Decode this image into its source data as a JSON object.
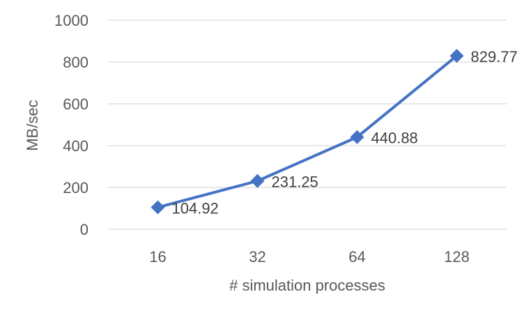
{
  "chart_data": {
    "type": "line",
    "title": "",
    "xlabel": "# simulation processes",
    "ylabel": "MB/sec",
    "categories": [
      "16",
      "32",
      "64",
      "128"
    ],
    "series": [
      {
        "values": [
          104.92,
          231.25,
          440.88,
          829.77
        ],
        "labels": [
          "104.92",
          "231.25",
          "440.88",
          "829.77"
        ]
      }
    ],
    "ylim": [
      0,
      1000
    ],
    "yticks": [
      0,
      200,
      400,
      600,
      800,
      1000
    ],
    "ytick_labels": [
      "0",
      "200",
      "400",
      "600",
      "800",
      "1000"
    ],
    "grid": true,
    "legend": "none",
    "line_color": "#4472c4",
    "marker": "diamond"
  }
}
